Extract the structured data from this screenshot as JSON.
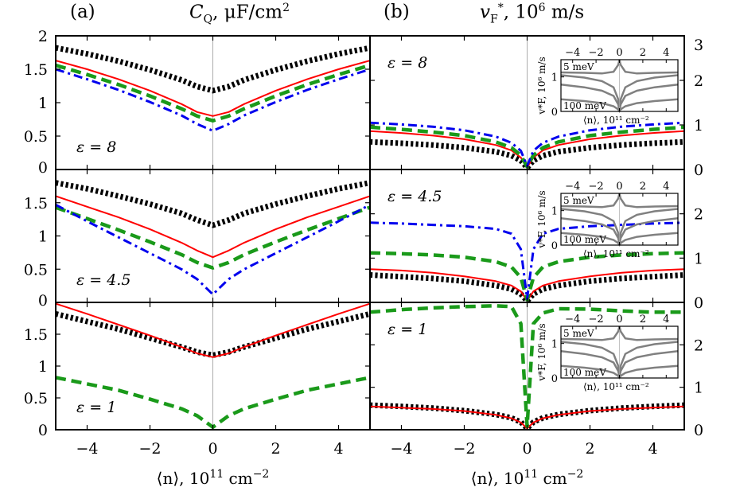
{
  "panel_a": {
    "label": "(a)",
    "title_symbol": "C",
    "title_sub": "Q",
    "title_rest": ", μF/cm",
    "title_sup": "2"
  },
  "panel_b": {
    "label": "(b)",
    "title_symbol": "v",
    "title_sub": "F",
    "title_sup": "*",
    "title_rest": ", 10",
    "title_sup2": "6",
    "title_unit": " m/s"
  },
  "xlabel": {
    "pre": "⟨n⟩, 10",
    "sup": "11",
    "post": " cm",
    "sup2": "−2"
  },
  "inset": {
    "top_ticks": [
      "−4",
      "−2",
      "0",
      "2",
      "4"
    ],
    "y_ticks": [
      "1",
      "0"
    ],
    "upper_note": "5 meV",
    "lower_note": "100 meV",
    "ylabel": "v*F, 10⁶ m/s",
    "xlabel": "⟨n⟩, 10¹¹ cm⁻²"
  },
  "colors": {
    "black": "#000000",
    "red": "#ff0000",
    "green": "#1a9a1a",
    "blue": "#0000ee",
    "inset_gray": "#808080"
  },
  "chart_data": [
    {
      "type": "line",
      "panel": "a",
      "annotation": "ε = 8",
      "xlim": [
        -5,
        5
      ],
      "ylim": [
        0,
        2
      ],
      "y_ticks": [
        "0",
        "0.5",
        "1",
        "1.5",
        "2"
      ],
      "x": [
        -5,
        -4,
        -3,
        -2,
        -1,
        -0.5,
        0,
        0.5,
        1,
        2,
        3,
        4,
        5
      ],
      "series": [
        {
          "color": "black",
          "style": "dotted",
          "values": [
            1.82,
            1.73,
            1.62,
            1.49,
            1.34,
            1.24,
            1.18,
            1.24,
            1.34,
            1.49,
            1.62,
            1.73,
            1.82
          ]
        },
        {
          "color": "red",
          "style": "solid",
          "values": [
            1.63,
            1.5,
            1.35,
            1.18,
            0.98,
            0.86,
            0.8,
            0.86,
            0.98,
            1.18,
            1.35,
            1.5,
            1.63
          ]
        },
        {
          "color": "green",
          "style": "dashed",
          "values": [
            1.56,
            1.42,
            1.27,
            1.1,
            0.91,
            0.8,
            0.73,
            0.8,
            0.91,
            1.1,
            1.27,
            1.42,
            1.56
          ]
        },
        {
          "color": "blue",
          "style": "dashdot",
          "values": [
            1.5,
            1.35,
            1.19,
            1.01,
            0.81,
            0.68,
            0.58,
            0.68,
            0.81,
            1.01,
            1.19,
            1.35,
            1.5
          ]
        }
      ]
    },
    {
      "type": "line",
      "panel": "a",
      "annotation": "ε = 4.5",
      "xlim": [
        -5,
        5
      ],
      "ylim": [
        0,
        2
      ],
      "y_ticks": [
        "0",
        "0.5",
        "1",
        "1.5"
      ],
      "x": [
        -5,
        -4,
        -3,
        -2,
        -1,
        -0.5,
        0,
        0.5,
        1,
        2,
        3,
        4,
        5
      ],
      "series": [
        {
          "color": "black",
          "style": "dotted",
          "values": [
            1.8,
            1.71,
            1.6,
            1.48,
            1.34,
            1.24,
            1.16,
            1.24,
            1.34,
            1.48,
            1.6,
            1.71,
            1.8
          ]
        },
        {
          "color": "red",
          "style": "solid",
          "values": [
            1.6,
            1.44,
            1.28,
            1.1,
            0.9,
            0.78,
            0.68,
            0.78,
            0.9,
            1.1,
            1.28,
            1.44,
            1.6
          ]
        },
        {
          "color": "green",
          "style": "dashed",
          "values": [
            1.43,
            1.26,
            1.09,
            0.91,
            0.72,
            0.6,
            0.52,
            0.6,
            0.72,
            0.91,
            1.09,
            1.26,
            1.43
          ]
        },
        {
          "color": "blue",
          "style": "dashdot",
          "values": [
            1.47,
            1.22,
            0.98,
            0.74,
            0.5,
            0.35,
            0.12,
            0.35,
            0.5,
            0.74,
            0.98,
            1.22,
            1.47
          ]
        }
      ]
    },
    {
      "type": "line",
      "panel": "a",
      "annotation": "ε = 1",
      "xlim": [
        -5,
        5
      ],
      "ylim": [
        0,
        2
      ],
      "y_ticks": [
        "0",
        "0.5",
        "1",
        "1.5"
      ],
      "x": [
        -5,
        -4,
        -3,
        -2,
        -1,
        -0.5,
        0,
        0.5,
        1,
        2,
        3,
        4,
        5
      ],
      "series": [
        {
          "color": "black",
          "style": "dotted",
          "values": [
            1.82,
            1.7,
            1.58,
            1.44,
            1.3,
            1.22,
            1.17,
            1.22,
            1.3,
            1.44,
            1.58,
            1.7,
            1.82
          ]
        },
        {
          "color": "red",
          "style": "solid",
          "values": [
            1.98,
            1.82,
            1.65,
            1.48,
            1.3,
            1.2,
            1.14,
            1.2,
            1.3,
            1.48,
            1.65,
            1.82,
            1.98
          ]
        },
        {
          "color": "green",
          "style": "dashed",
          "values": [
            0.82,
            0.72,
            0.62,
            0.48,
            0.33,
            0.22,
            0.04,
            0.22,
            0.33,
            0.48,
            0.62,
            0.72,
            0.82
          ]
        }
      ]
    },
    {
      "type": "line",
      "panel": "b",
      "annotation": "ε = 8",
      "xlim": [
        -5,
        5
      ],
      "ylim": [
        0,
        3
      ],
      "y_ticks": [
        "0",
        "1",
        "2",
        "3"
      ],
      "x": [
        -5,
        -4,
        -3,
        -2,
        -1,
        -0.5,
        -0.2,
        0,
        0.2,
        0.5,
        1,
        2,
        3,
        4,
        5
      ],
      "series": [
        {
          "color": "black",
          "style": "dotted",
          "values": [
            0.62,
            0.59,
            0.55,
            0.49,
            0.4,
            0.31,
            0.2,
            0.04,
            0.2,
            0.31,
            0.4,
            0.49,
            0.55,
            0.59,
            0.62
          ]
        },
        {
          "color": "red",
          "style": "solid",
          "values": [
            0.86,
            0.82,
            0.76,
            0.68,
            0.55,
            0.43,
            0.27,
            0.05,
            0.27,
            0.43,
            0.55,
            0.68,
            0.76,
            0.82,
            0.86
          ]
        },
        {
          "color": "green",
          "style": "dashed",
          "values": [
            0.95,
            0.9,
            0.84,
            0.76,
            0.62,
            0.49,
            0.32,
            0.06,
            0.32,
            0.49,
            0.62,
            0.76,
            0.84,
            0.9,
            0.95
          ]
        },
        {
          "color": "blue",
          "style": "dashdot",
          "values": [
            1.05,
            1.01,
            0.96,
            0.88,
            0.74,
            0.6,
            0.42,
            0.08,
            0.42,
            0.6,
            0.74,
            0.88,
            0.96,
            1.01,
            1.05
          ]
        }
      ]
    },
    {
      "type": "line",
      "panel": "b",
      "annotation": "ε = 4.5",
      "xlim": [
        -5,
        5
      ],
      "ylim": [
        0,
        3
      ],
      "y_ticks": [
        "0",
        "1",
        "2"
      ],
      "x": [
        -5,
        -4,
        -3,
        -2,
        -1,
        -0.5,
        -0.2,
        0,
        0.2,
        0.5,
        1,
        2,
        3,
        4,
        5
      ],
      "series": [
        {
          "color": "black",
          "style": "dotted",
          "values": [
            0.62,
            0.58,
            0.54,
            0.48,
            0.38,
            0.3,
            0.19,
            0.03,
            0.19,
            0.3,
            0.38,
            0.48,
            0.54,
            0.58,
            0.62
          ]
        },
        {
          "color": "red",
          "style": "solid",
          "values": [
            0.75,
            0.72,
            0.67,
            0.59,
            0.48,
            0.38,
            0.25,
            0.04,
            0.25,
            0.38,
            0.48,
            0.59,
            0.67,
            0.72,
            0.75
          ]
        },
        {
          "color": "green",
          "style": "dashed",
          "values": [
            1.12,
            1.1,
            1.07,
            1.02,
            0.92,
            0.8,
            0.56,
            0.06,
            0.56,
            0.8,
            0.92,
            1.02,
            1.07,
            1.1,
            1.12
          ]
        },
        {
          "color": "blue",
          "style": "dashdot",
          "values": [
            1.8,
            1.78,
            1.75,
            1.72,
            1.66,
            1.55,
            1.2,
            0.08,
            1.2,
            1.55,
            1.66,
            1.72,
            1.75,
            1.78,
            1.8
          ]
        }
      ]
    },
    {
      "type": "line",
      "panel": "b",
      "annotation": "ε = 1",
      "xlim": [
        -5,
        5
      ],
      "ylim": [
        0,
        3
      ],
      "y_ticks": [
        "0",
        "1",
        "2"
      ],
      "x": [
        -5,
        -4,
        -3,
        -2,
        -1,
        -0.5,
        -0.2,
        0,
        0.2,
        0.5,
        1,
        2,
        3,
        4,
        5
      ],
      "series": [
        {
          "color": "black",
          "style": "dotted",
          "values": [
            0.58,
            0.55,
            0.51,
            0.45,
            0.36,
            0.28,
            0.18,
            0.03,
            0.18,
            0.28,
            0.36,
            0.45,
            0.51,
            0.55,
            0.58
          ]
        },
        {
          "color": "red",
          "style": "solid",
          "values": [
            0.55,
            0.52,
            0.49,
            0.44,
            0.35,
            0.27,
            0.17,
            0.03,
            0.17,
            0.27,
            0.35,
            0.44,
            0.49,
            0.52,
            0.55
          ]
        },
        {
          "color": "green",
          "style": "dashed",
          "values": [
            2.77,
            2.83,
            2.87,
            2.9,
            2.92,
            2.9,
            2.5,
            0.08,
            2.5,
            2.75,
            2.85,
            2.84,
            2.8,
            2.77,
            2.77
          ]
        }
      ]
    }
  ]
}
